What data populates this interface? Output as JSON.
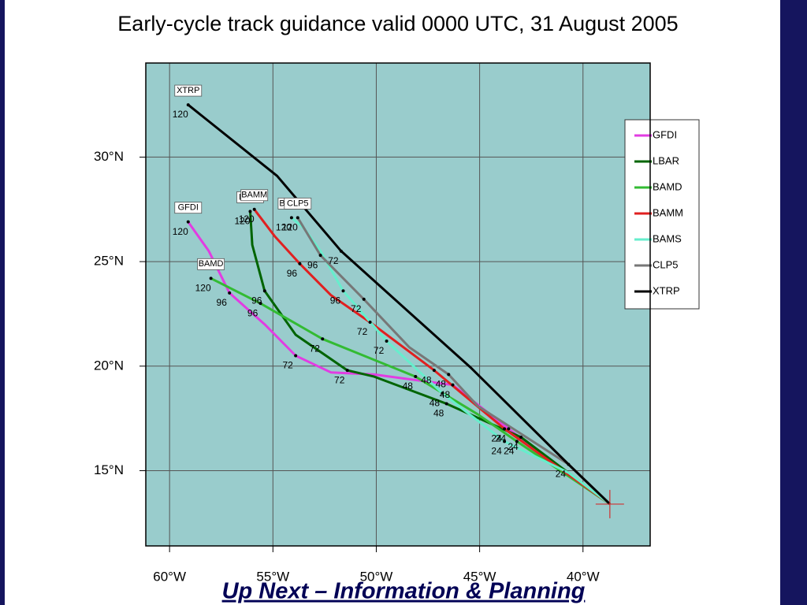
{
  "chart_data": {
    "type": "line",
    "title": "Early-cycle track guidance valid 0000 UTC, 31 August 2005",
    "xlim": [
      -61.15,
      -36.75
    ],
    "ylim": [
      11.4,
      34.5
    ],
    "xticks": [
      {
        "value": -60,
        "label": "60°W"
      },
      {
        "value": -55,
        "label": "55°W"
      },
      {
        "value": -50,
        "label": "50°W"
      },
      {
        "value": -45,
        "label": "45°W"
      },
      {
        "value": -40,
        "label": "40°W"
      }
    ],
    "yticks": [
      {
        "value": 15,
        "label": "15°N"
      },
      {
        "value": 20,
        "label": "20°N"
      },
      {
        "value": 25,
        "label": "25°N"
      },
      {
        "value": 30,
        "label": "30°N"
      }
    ],
    "grid": true,
    "legend": "upper right",
    "series": [
      {
        "name": "GFDI",
        "color": "#e23ce2",
        "x": [
          -38.7,
          -43.6,
          -46.3,
          -50.1,
          -52.2,
          -53.9,
          -55.4,
          -57.1,
          -58.1,
          -59.1
        ],
        "values": [
          13.4,
          17.0,
          19.1,
          19.6,
          19.7,
          20.5,
          22.0,
          23.5,
          25.5,
          26.9
        ],
        "point_labels": [
          null,
          "24",
          "48",
          null,
          null,
          "72",
          null,
          "96",
          null,
          "120"
        ]
      },
      {
        "name": "LBAR",
        "color": "#006400",
        "x": [
          -38.7,
          -43.0,
          -46.6,
          -50.1,
          -51.4,
          -53.9,
          -55.4,
          -56.0,
          -56.1
        ],
        "values": [
          13.4,
          16.6,
          18.2,
          19.5,
          19.8,
          21.5,
          23.6,
          25.8,
          27.4
        ],
        "point_labels": [
          null,
          "24",
          "48",
          null,
          "72",
          null,
          "96",
          null,
          "120"
        ]
      },
      {
        "name": "BAMD",
        "color": "#33bb33",
        "x": [
          -38.7,
          -43.2,
          -45.1,
          -48.1,
          -52.6,
          -55.6,
          -58.0
        ],
        "values": [
          13.4,
          16.4,
          17.7,
          19.5,
          21.3,
          23.0,
          24.2
        ],
        "point_labels": [
          null,
          "24",
          null,
          "48",
          "72",
          "96",
          "120"
        ]
      },
      {
        "name": "BAMM",
        "color": "#e02020",
        "x": [
          -38.7,
          -43.8,
          -47.2,
          -50.3,
          -52.2,
          -53.7,
          -54.9,
          -55.9
        ],
        "values": [
          13.4,
          17.0,
          19.8,
          22.1,
          23.4,
          24.9,
          26.2,
          27.5
        ],
        "point_labels": [
          null,
          "24",
          "48",
          "72",
          null,
          "96",
          null,
          "120"
        ]
      },
      {
        "name": "BAMS",
        "color": "#66eecc",
        "x": [
          -38.7,
          -40.7,
          -43.8,
          -46.8,
          -49.5,
          -51.6,
          -52.7,
          -53.5,
          -54.1
        ],
        "values": [
          13.4,
          14.9,
          16.4,
          18.7,
          21.2,
          23.6,
          25.5,
          26.6,
          27.1
        ],
        "point_labels": [
          null,
          null,
          "24",
          "48",
          "72",
          "96",
          null,
          null,
          "120"
        ]
      },
      {
        "name": "CLP5",
        "color": "#777777",
        "x": [
          -38.7,
          -40.7,
          -45.1,
          -46.5,
          -48.4,
          -50.6,
          -52.7,
          -53.8
        ],
        "values": [
          13.4,
          15.3,
          18.1,
          19.6,
          20.9,
          23.2,
          25.3,
          27.1
        ],
        "point_labels": [
          null,
          "24",
          null,
          "48",
          null,
          "72",
          "96",
          "120"
        ]
      },
      {
        "name": "XTRP",
        "color": "#000000",
        "x": [
          -38.7,
          -40.7,
          -45.4,
          -51.7,
          -54.8,
          -59.1
        ],
        "values": [
          13.4,
          15.3,
          19.9,
          25.5,
          29.1,
          32.5
        ],
        "point_labels": [
          null,
          null,
          null,
          "72",
          null,
          "120"
        ]
      }
    ]
  },
  "slide": {
    "caption": "Up Next – Information & Planning"
  }
}
